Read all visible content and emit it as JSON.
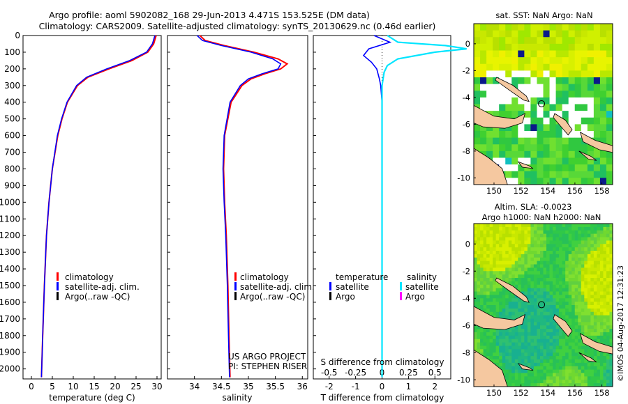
{
  "header": {
    "title_line1": "Argo profile: aoml 5902082_168 29-Jun-2013 4.471S 153.525E (DM data)",
    "title_line2": "Climatology: CARS2009. Satellite-adjusted climatology: synTS_20130629.nc (0.46d earlier)"
  },
  "colors": {
    "climatology": "#ff0000",
    "satellite": "#0000ff",
    "argo": "#000000",
    "satellite_salinity": "#00e5ff",
    "argo_salinity": "#ff00ff"
  },
  "depth_axis": {
    "ticks": [
      "0",
      "100",
      "200",
      "300",
      "400",
      "500",
      "600",
      "700",
      "800",
      "900",
      "1000",
      "1100",
      "1200",
      "1300",
      "1400",
      "1500",
      "1600",
      "1700",
      "1800",
      "1900",
      "2000"
    ]
  },
  "chart_data": [
    {
      "type": "line",
      "name": "temperature-profile",
      "xlabel": "temperature (deg C)",
      "ylabel": "depth",
      "xlim": [
        -2,
        31
      ],
      "ylim": [
        2060,
        0
      ],
      "xticks": [
        "0",
        "5",
        "10",
        "15",
        "20",
        "25",
        "30"
      ],
      "legend": [
        "climatology",
        "satellite-adj. clim.",
        "Argo(..raw -QC)"
      ],
      "series": [
        {
          "name": "climatology",
          "depth": [
            0,
            50,
            100,
            150,
            200,
            250,
            300,
            400,
            500,
            600,
            800,
            1000,
            1200,
            1500,
            1800,
            2050
          ],
          "values": [
            29.8,
            29.2,
            27.8,
            24.0,
            18.5,
            13.5,
            11.0,
            8.6,
            7.3,
            6.3,
            5.0,
            4.2,
            3.6,
            3.1,
            2.7,
            2.4
          ]
        },
        {
          "name": "satellite-adj. clim.",
          "depth": [
            0,
            50,
            100,
            150,
            200,
            250,
            300,
            400,
            500,
            600,
            800,
            1000,
            1200,
            1500,
            1800,
            2050
          ],
          "values": [
            29.5,
            28.9,
            27.5,
            23.5,
            18.0,
            13.2,
            10.8,
            8.5,
            7.2,
            6.2,
            5.0,
            4.2,
            3.6,
            3.1,
            2.7,
            2.4
          ]
        }
      ]
    },
    {
      "type": "line",
      "name": "salinity-profile",
      "xlabel": "salinity",
      "ylabel": "depth",
      "xlim": [
        33.5,
        36.1
      ],
      "ylim": [
        2060,
        0
      ],
      "xticks": [
        "34",
        "34.5",
        "35",
        "35.5",
        "36"
      ],
      "legend": [
        "climatology",
        "satellite-adj. clim.",
        "Argo(..raw -QC)"
      ],
      "annotation": [
        "US ARGO PROJECT",
        "PI: STEPHEN RISER"
      ],
      "series": [
        {
          "name": "climatology",
          "depth": [
            0,
            30,
            60,
            100,
            140,
            170,
            200,
            230,
            260,
            300,
            400,
            600,
            800,
            1000,
            1200,
            1500,
            1800,
            2050
          ],
          "values": [
            34.1,
            34.2,
            34.55,
            35.1,
            35.55,
            35.72,
            35.6,
            35.3,
            35.05,
            34.88,
            34.68,
            34.56,
            34.54,
            34.56,
            34.59,
            34.62,
            34.64,
            34.66
          ]
        },
        {
          "name": "satellite-adj. clim.",
          "depth": [
            0,
            30,
            60,
            100,
            140,
            170,
            200,
            230,
            260,
            300,
            400,
            600,
            800,
            1000,
            1200,
            1500,
            1800,
            2050
          ],
          "values": [
            34.05,
            34.15,
            34.5,
            35.05,
            35.45,
            35.6,
            35.55,
            35.25,
            35.0,
            34.85,
            34.66,
            34.55,
            34.53,
            34.55,
            34.58,
            34.61,
            34.63,
            34.65
          ]
        }
      ]
    },
    {
      "type": "line",
      "name": "difference-profile",
      "xlabel": "T difference from climatology",
      "xlabel2": "S difference from climatology",
      "xlim": [
        -2.6,
        2.6
      ],
      "ylim": [
        2060,
        0
      ],
      "xticks": [
        "-2",
        "-1",
        "0",
        "1",
        "2"
      ],
      "xticks_salinity": [
        "-0.5",
        "-0.25",
        "0",
        "0.25",
        "0.5"
      ],
      "legend_headers": [
        "temperature",
        "salinity"
      ],
      "legend": [
        "satellite",
        "Argo",
        "satellite",
        "Argo"
      ],
      "series": [
        {
          "name": "temperature satellite",
          "depth": [
            0,
            40,
            80,
            120,
            160,
            200,
            260,
            300,
            400,
            600,
            1000,
            2050
          ],
          "values": [
            -0.3,
            0.3,
            -0.5,
            -0.7,
            -0.4,
            -0.2,
            -0.1,
            -0.05,
            0,
            0,
            0,
            0
          ]
        },
        {
          "name": "salinity satellite",
          "depth": [
            0,
            40,
            60,
            80,
            100,
            140,
            180,
            220,
            300,
            500,
            1000,
            2050
          ],
          "values": [
            0.05,
            0.15,
            0.6,
            0.8,
            0.5,
            0.15,
            0.05,
            0.02,
            0,
            0,
            0,
            0
          ]
        }
      ]
    },
    {
      "type": "heatmap",
      "name": "sst-map",
      "title": "sat. SST: NaN Argo: NaN",
      "xticks": [
        "150",
        "152",
        "154",
        "156",
        "158"
      ],
      "yticks": [
        "0",
        "-2",
        "-4",
        "-6",
        "-8",
        "-10"
      ],
      "xlim": [
        148.5,
        158.8
      ],
      "ylim": [
        -10.5,
        1.5
      ],
      "marker": {
        "lon": 153.525,
        "lat": -4.471
      }
    },
    {
      "type": "heatmap",
      "name": "sla-map",
      "title_line1": "Altim. SLA: -0.0023",
      "title_line2": "Argo h1000: NaN h2000: NaN",
      "xticks": [
        "150",
        "152",
        "154",
        "156",
        "158"
      ],
      "yticks": [
        "0",
        "-2",
        "-4",
        "-6",
        "-8",
        "-10"
      ],
      "xlim": [
        148.5,
        158.8
      ],
      "ylim": [
        -10.5,
        1.5
      ],
      "marker": {
        "lon": 153.525,
        "lat": -4.471
      }
    }
  ],
  "footer": {
    "stamp": "©IMOS 04-Aug-2017 12:31:23"
  }
}
